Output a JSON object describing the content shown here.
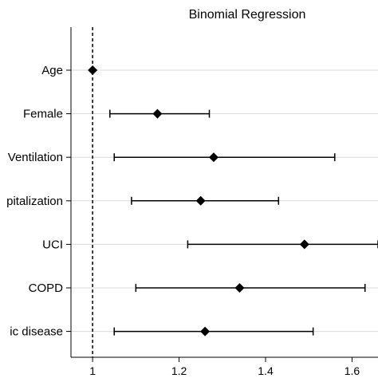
{
  "chart_data": {
    "type": "scatter",
    "subtype": "forest-plot",
    "title": "Binomial Regression",
    "categories": [
      "Age",
      "Female",
      "Ventilation",
      "pitalization",
      "UCI",
      "COPD",
      "ic disease"
    ],
    "estimates": [
      1.0,
      1.15,
      1.28,
      1.25,
      1.49,
      1.34,
      1.26
    ],
    "ci_lower": [
      1.0,
      1.04,
      1.05,
      1.09,
      1.22,
      1.1,
      1.05
    ],
    "ci_upper": [
      1.0,
      1.27,
      1.56,
      1.43,
      1.66,
      1.63,
      1.51
    ],
    "xlim": [
      0.95,
      1.66
    ],
    "xticks": [
      1,
      1.2,
      1.4,
      1.6
    ],
    "xtick_labels": [
      "1",
      "1.2",
      "1.4",
      "1.6"
    ],
    "reference_line": 1,
    "reference_line_style": "dashed",
    "grid": "horizontal",
    "marker": "diamond",
    "colors": {
      "marker": "#000000",
      "grid": "#d9d9d9",
      "axis": "#000000"
    }
  }
}
